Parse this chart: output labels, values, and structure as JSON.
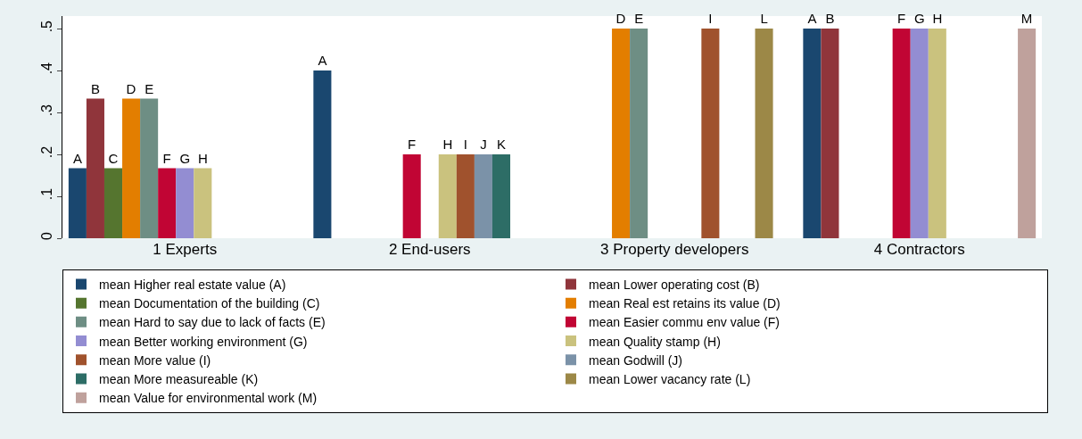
{
  "chart_data": {
    "type": "bar",
    "categories": [
      "1 Experts",
      "2 End-users",
      "3 Property developers",
      "4 Contractors"
    ],
    "ylim": [
      0,
      0.53
    ],
    "yticks": [
      0,
      {
        "value": 0.1,
        "label": ".1"
      },
      {
        "value": 0.2,
        "label": ".2"
      },
      {
        "value": 0.3,
        "label": ".3"
      },
      {
        "value": 0.4,
        "label": ".4"
      },
      {
        "value": 0.5,
        "label": ".5"
      }
    ],
    "legend": "bottom",
    "series": [
      {
        "name": "mean Higher real estate value (A)",
        "color": "#1a476f",
        "values": [
          0.167,
          0.4,
          null,
          0.5
        ],
        "value_labels": [
          "A",
          "A",
          null,
          "A"
        ]
      },
      {
        "name": "mean Lower operating cost (B)",
        "color": "#90353b",
        "values": [
          0.333,
          null,
          null,
          0.5
        ],
        "value_labels": [
          "B",
          null,
          null,
          "B"
        ]
      },
      {
        "name": "mean Documentation of the building (C)",
        "color": "#55752f",
        "values": [
          0.167,
          null,
          null,
          null
        ],
        "value_labels": [
          "C",
          null,
          null,
          null
        ]
      },
      {
        "name": "mean Real est retains its value (D)",
        "color": "#e37e00",
        "values": [
          0.333,
          null,
          0.5,
          null
        ],
        "value_labels": [
          "D",
          null,
          "D",
          null
        ]
      },
      {
        "name": "mean Hard to say due to lack of facts (E)",
        "color": "#6e8e84",
        "values": [
          0.333,
          null,
          0.5,
          null
        ],
        "value_labels": [
          "E",
          null,
          "E",
          null
        ]
      },
      {
        "name": "mean Easier commu env value (F)",
        "color": "#c10534",
        "values": [
          0.167,
          0.2,
          null,
          0.5
        ],
        "value_labels": [
          "F",
          "F",
          null,
          "F"
        ]
      },
      {
        "name": "mean Better working environment (G)",
        "color": "#938dd2",
        "values": [
          0.167,
          null,
          null,
          0.5
        ],
        "value_labels": [
          "G",
          null,
          null,
          "G"
        ]
      },
      {
        "name": "mean Quality stamp (H)",
        "color": "#cac27e",
        "values": [
          0.167,
          0.2,
          null,
          0.5
        ],
        "value_labels": [
          "H",
          "H",
          null,
          "H"
        ]
      },
      {
        "name": "mean More value (I)",
        "color": "#a0522d",
        "values": [
          null,
          0.2,
          0.5,
          null
        ],
        "value_labels": [
          null,
          "I",
          "I",
          null
        ]
      },
      {
        "name": "mean Godwill (J)",
        "color": "#7b92a8",
        "values": [
          null,
          0.2,
          null,
          null
        ],
        "value_labels": [
          null,
          "J",
          null,
          null
        ]
      },
      {
        "name": "mean More measureable (K)",
        "color": "#2d6d66",
        "values": [
          null,
          0.2,
          null,
          null
        ],
        "value_labels": [
          null,
          "K",
          null,
          null
        ]
      },
      {
        "name": "mean Lower vacancy rate (L)",
        "color": "#9c8847",
        "values": [
          null,
          null,
          0.5,
          null
        ],
        "value_labels": [
          null,
          null,
          "L",
          null
        ]
      },
      {
        "name": "mean Value for environmental work (M)",
        "color": "#bfa19c",
        "values": [
          null,
          null,
          null,
          0.5
        ],
        "value_labels": [
          null,
          null,
          null,
          "M"
        ]
      }
    ]
  }
}
